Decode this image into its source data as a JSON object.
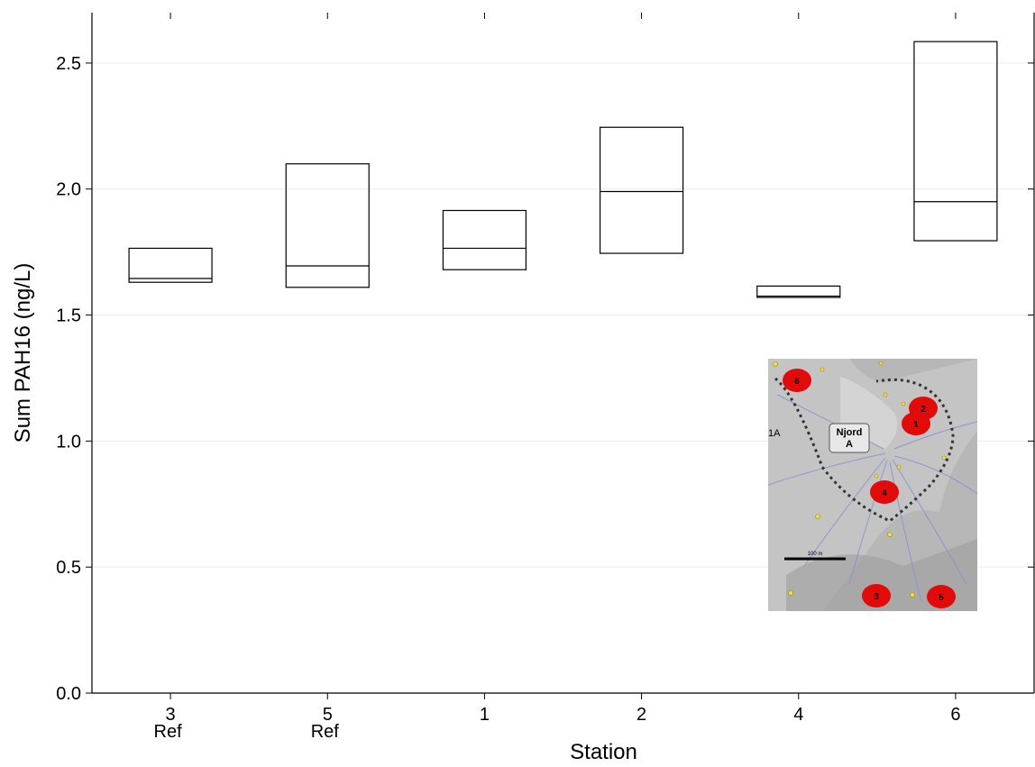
{
  "chart_data": {
    "type": "box",
    "xlabel": "Station",
    "ylabel": "Sum PAH16 (ng/L)",
    "ylim": [
      0,
      2.7
    ],
    "yticks": [
      "0.0",
      "0.5",
      "1.0",
      "1.5",
      "2.0",
      "2.5"
    ],
    "grid": "horizontal",
    "categories": [
      {
        "label": "3",
        "sublabel": "Ref"
      },
      {
        "label": "5",
        "sublabel": "Ref"
      },
      {
        "label": "1",
        "sublabel": ""
      },
      {
        "label": "2",
        "sublabel": ""
      },
      {
        "label": "4",
        "sublabel": ""
      },
      {
        "label": "6",
        "sublabel": ""
      }
    ],
    "boxes": [
      {
        "station": "3",
        "q1": 1.63,
        "median": 1.645,
        "q3": 1.765
      },
      {
        "station": "5",
        "q1": 1.61,
        "median": 1.695,
        "q3": 2.1
      },
      {
        "station": "1",
        "q1": 1.68,
        "median": 1.765,
        "q3": 1.915
      },
      {
        "station": "2",
        "q1": 1.745,
        "median": 1.99,
        "q3": 2.245
      },
      {
        "station": "4",
        "q1": 1.57,
        "median": 1.575,
        "q3": 1.615
      },
      {
        "station": "6",
        "q1": 1.795,
        "median": 1.95,
        "q3": 2.585
      }
    ]
  },
  "inset_map": {
    "platform_label_line1": "Njord",
    "platform_label_line2": "A",
    "scale_label": "100 m",
    "edge_label": "1A",
    "station_markers": [
      "6",
      "2",
      "1",
      "4",
      "3",
      "5"
    ],
    "colors": {
      "marker": "#e30a0a",
      "background": "#b7b7b7",
      "contour": "#8a8fd0",
      "boundary": "#333333",
      "points": "#f0e040"
    }
  }
}
